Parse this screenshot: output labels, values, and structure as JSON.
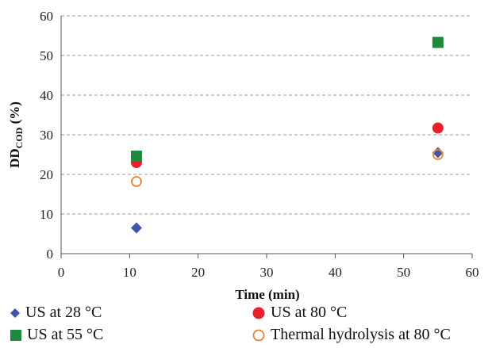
{
  "chart_data": {
    "type": "scatter",
    "xlabel": "Time (min)",
    "ylabel_main": "DD",
    "ylabel_sub": "COD",
    "ylabel_suffix": " (%)",
    "xlim": [
      0,
      60
    ],
    "ylim": [
      0,
      60
    ],
    "x_ticks": [
      "0",
      "10",
      "20",
      "30",
      "40",
      "50",
      "60"
    ],
    "y_ticks": [
      "0",
      "10",
      "20",
      "30",
      "40",
      "50",
      "60"
    ],
    "grid": "horizontal dashed",
    "legend_placement": "bottom",
    "series": [
      {
        "name": "US at 28 °C",
        "marker": "diamond",
        "color": "#3e55a8",
        "points": [
          {
            "x": 11,
            "y": 6.5
          },
          {
            "x": 55,
            "y": 25.5
          }
        ]
      },
      {
        "name": "US at 80 °C",
        "marker": "circle",
        "color": "#e8202a",
        "points": [
          {
            "x": 11,
            "y": 23
          },
          {
            "x": 55,
            "y": 31.7
          }
        ]
      },
      {
        "name": "US at 55 °C",
        "marker": "square",
        "color": "#1d8a3c",
        "points": [
          {
            "x": 11,
            "y": 24.6
          },
          {
            "x": 55,
            "y": 53.3
          }
        ]
      },
      {
        "name": "Thermal hydrolysis at 80 °C",
        "marker": "open-circle",
        "color": "#e9812f",
        "points": [
          {
            "x": 11,
            "y": 18.2
          },
          {
            "x": 55,
            "y": 25
          }
        ]
      }
    ]
  }
}
